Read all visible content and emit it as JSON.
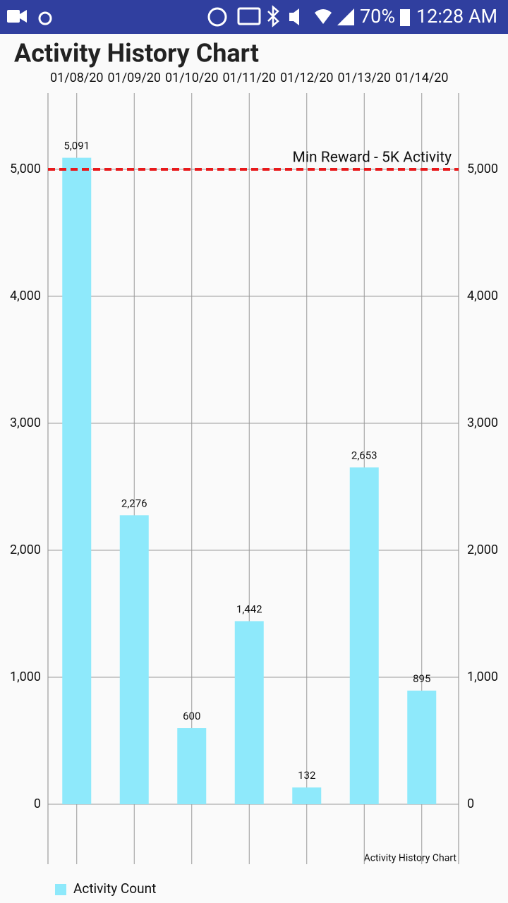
{
  "status_bar": {
    "battery": "70%",
    "time": "12:28 AM"
  },
  "chart_data": {
    "type": "bar",
    "title": "Activity History Chart",
    "description": "Activity History Chart",
    "categories": [
      "01/08/20",
      "01/09/20",
      "01/10/20",
      "01/11/20",
      "01/12/20",
      "01/13/20",
      "01/14/20"
    ],
    "series": [
      {
        "name": "Activity Count",
        "color": "#8ee9fb",
        "values": [
          5091,
          2276,
          600,
          1442,
          132,
          2653,
          895
        ],
        "value_labels": [
          "5,091",
          "2,276",
          "600",
          "1,442",
          "132",
          "2,653",
          "895"
        ]
      }
    ],
    "ylim": [
      -472,
      5600
    ],
    "yticks": [
      0,
      {
        "value": 1000,
        "label": "1,000"
      },
      {
        "value": 2000,
        "label": "2,000"
      },
      {
        "value": 3000,
        "label": "3,000"
      },
      {
        "value": 4000,
        "label": "4,000"
      },
      {
        "value": 5000,
        "label": "5,000"
      }
    ],
    "y2lim": [
      -472,
      5600
    ],
    "y2ticks": [
      0,
      {
        "value": 1000,
        "label": "1,000"
      },
      {
        "value": 2000,
        "label": "2,000"
      },
      {
        "value": 3000,
        "label": "3,000"
      },
      {
        "value": 4000,
        "label": "4,000"
      },
      {
        "value": 5000,
        "label": "5,000"
      }
    ],
    "limit_line": {
      "value": 5000,
      "label": "Min Reward - 5K Activity",
      "color": "#e8191b"
    },
    "grid": true,
    "legend": "bottom-left"
  }
}
